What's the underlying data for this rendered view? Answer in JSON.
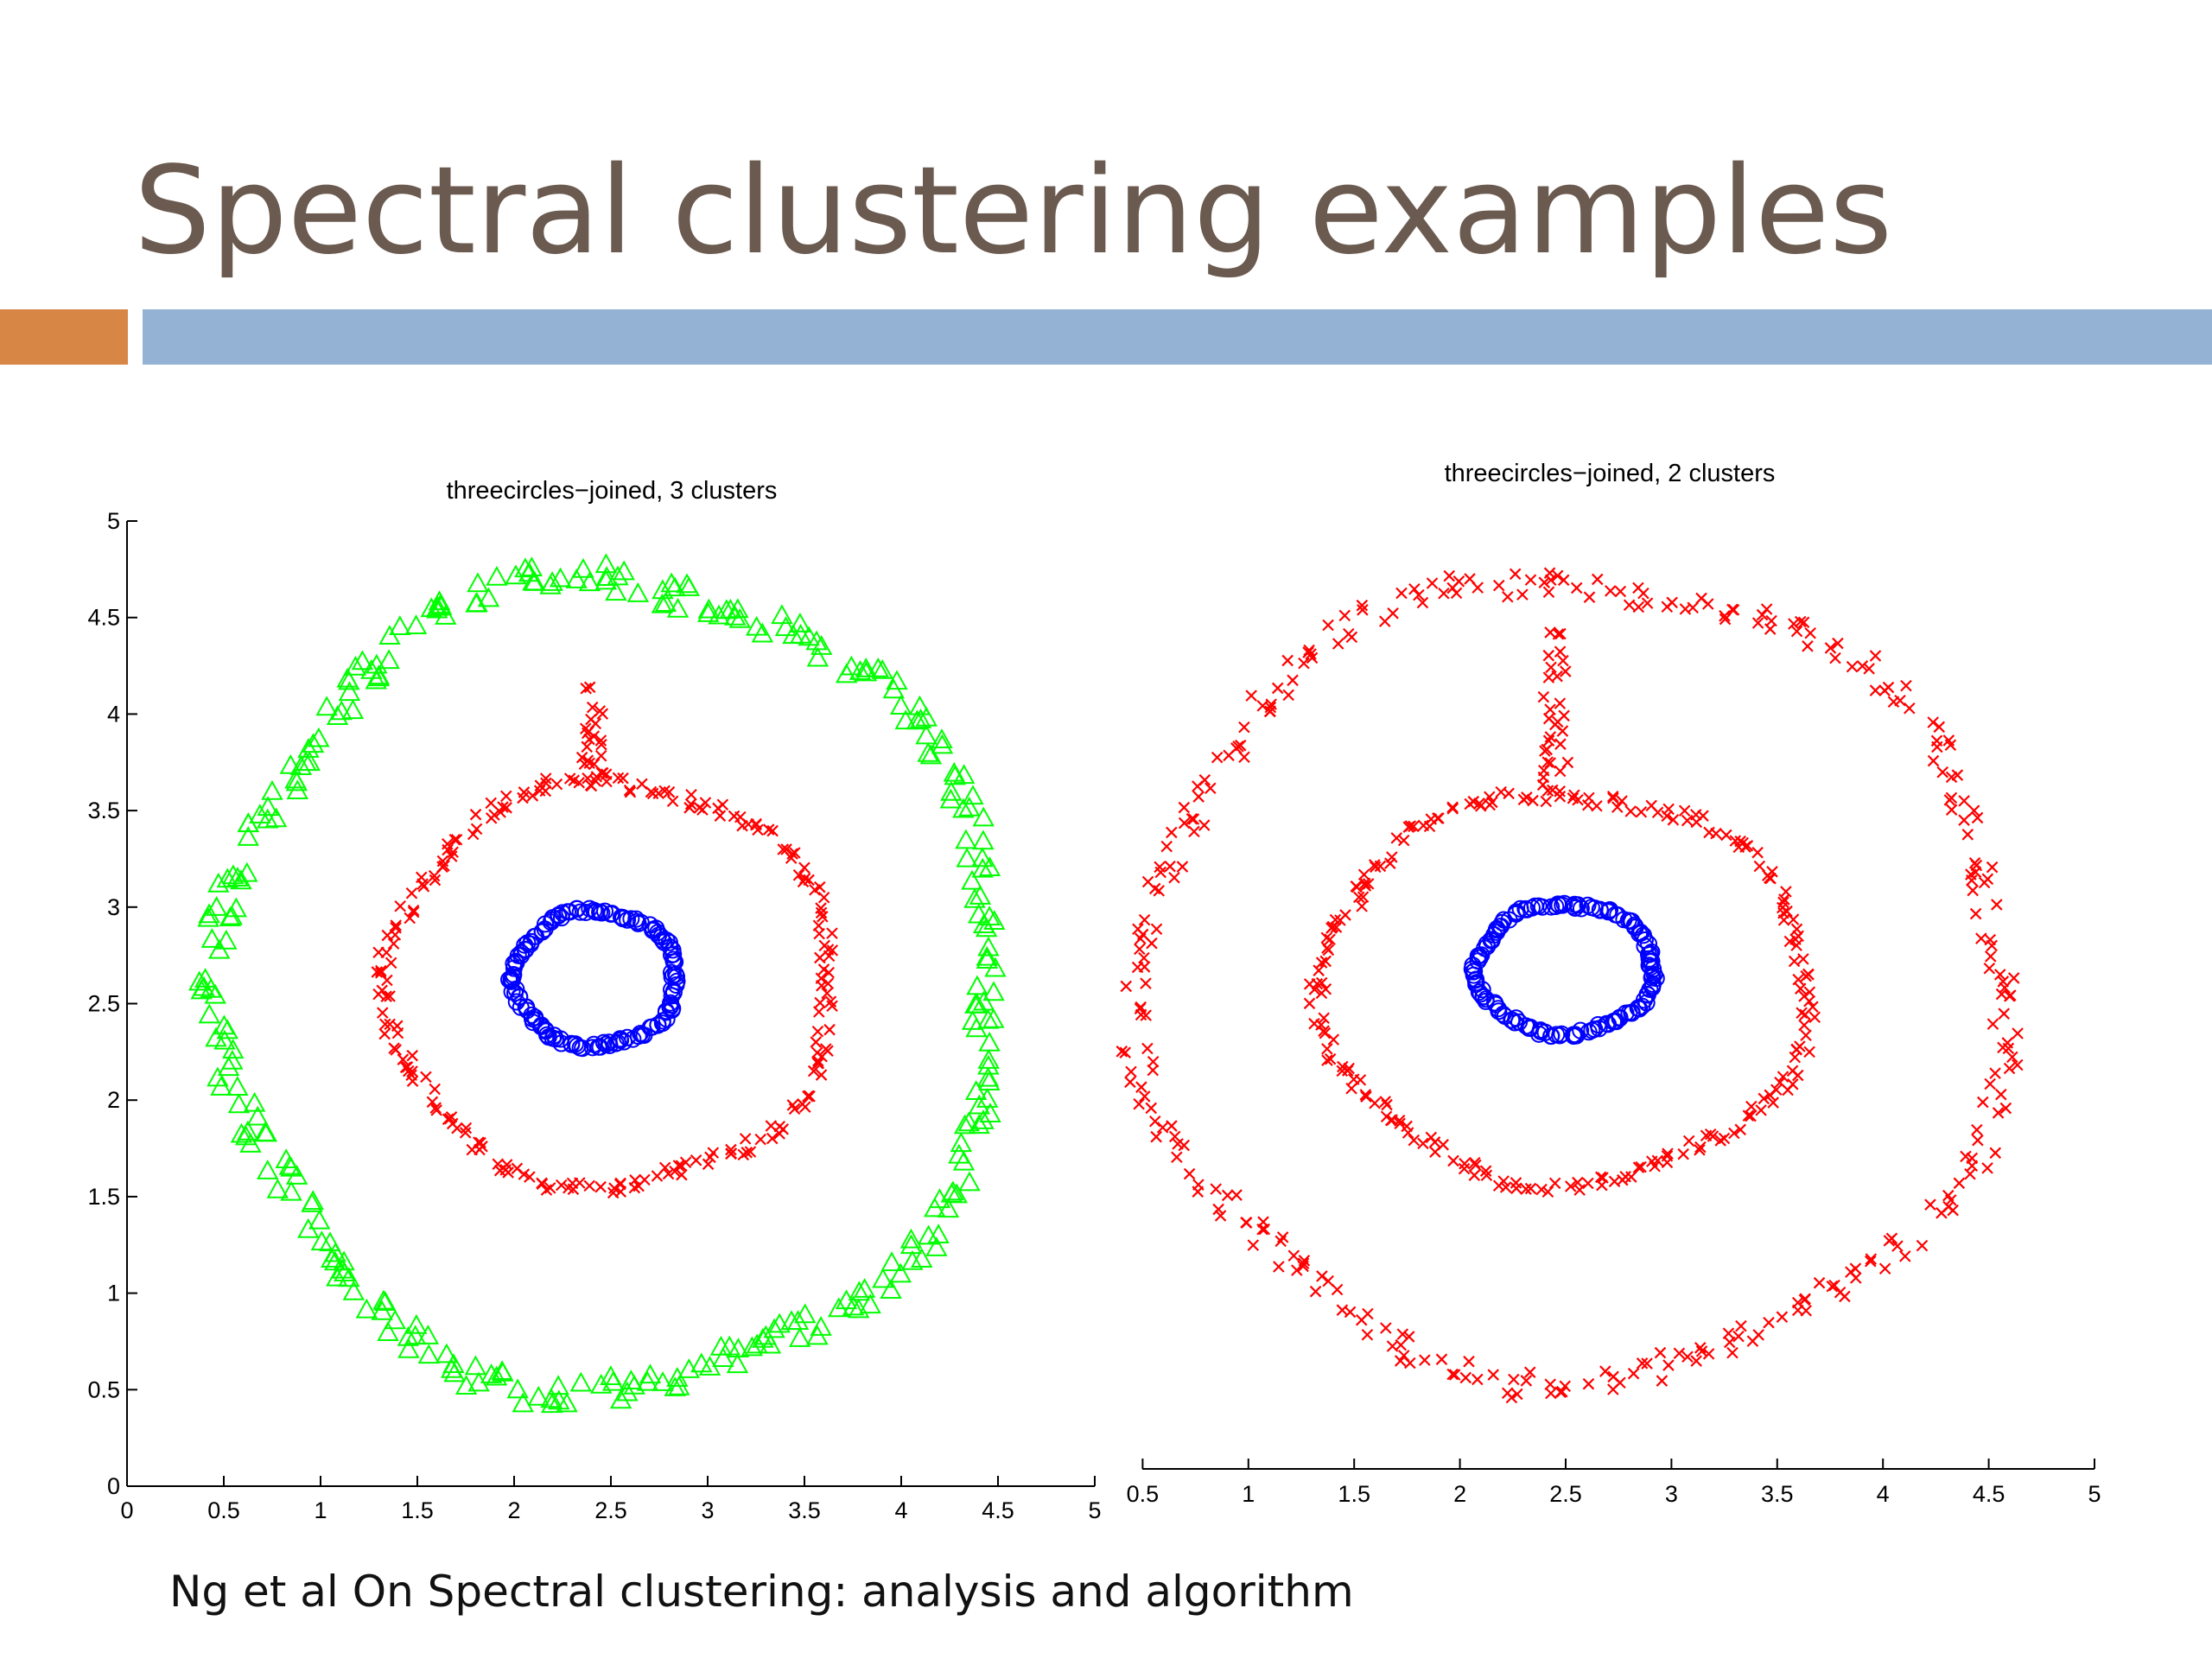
{
  "slide": {
    "title": "Spectral clustering examples",
    "caption": "Ng et al On Spectral clustering: analysis and algorithm",
    "colors": {
      "title": "#6b5a4f",
      "accent_orange": "#d88646",
      "accent_blue": "#94b3d4"
    }
  },
  "chart_data": [
    {
      "type": "scatter",
      "title": "threecircles−joined, 3 clusters",
      "xlabel": "",
      "ylabel": "",
      "xlim": [
        0,
        5
      ],
      "ylim": [
        0,
        5
      ],
      "xticks": [
        "0",
        "0.5",
        "1",
        "1.5",
        "2",
        "2.5",
        "3",
        "3.5",
        "4",
        "4.5",
        "5"
      ],
      "yticks": [
        "0",
        "0.5",
        "1",
        "1.5",
        "2",
        "2.5",
        "3",
        "3.5",
        "4",
        "4.5",
        "5"
      ],
      "grid": false,
      "series": [
        {
          "shape": "ring",
          "marker": "triangle",
          "color": "#00ff00",
          "center": [
            2.5,
            2.6
          ],
          "rx": 2.0,
          "ry": 2.1,
          "points": 320
        },
        {
          "shape": "ring",
          "marker": "x",
          "color": "#ff0000",
          "center": [
            2.5,
            2.6
          ],
          "rx": 1.15,
          "ry": 1.05,
          "points": 230
        },
        {
          "shape": "bridge",
          "marker": "x",
          "color": "#ff0000",
          "x": 2.4,
          "y_range": [
            3.65,
            4.15
          ],
          "points": 25
        },
        {
          "shape": "ring",
          "marker": "circle",
          "color": "#0000ff",
          "center": [
            2.42,
            2.63
          ],
          "rx": 0.42,
          "ry": 0.35,
          "points": 150
        }
      ]
    },
    {
      "type": "scatter",
      "title": "threecircles−joined, 2 clusters",
      "xlabel": "",
      "ylabel": "",
      "xlim": [
        0,
        5
      ],
      "ylim": [
        0,
        5
      ],
      "xticks": [
        "0.5",
        "1",
        "1.5",
        "2",
        "2.5",
        "3",
        "3.5",
        "4",
        "4.5",
        "5"
      ],
      "grid": false,
      "series": [
        {
          "shape": "ring",
          "marker": "x",
          "color": "#ff0000",
          "center": [
            2.55,
            2.65
          ],
          "rx": 2.05,
          "ry": 2.15,
          "points": 330
        },
        {
          "shape": "ring",
          "marker": "x",
          "color": "#ff0000",
          "center": [
            2.5,
            2.6
          ],
          "rx": 1.15,
          "ry": 1.05,
          "points": 230
        },
        {
          "shape": "bridge",
          "marker": "x",
          "color": "#ff0000",
          "x": 2.45,
          "y_range": [
            3.65,
            4.6
          ],
          "points": 30
        },
        {
          "shape": "ring",
          "marker": "circle",
          "color": "#0000ff",
          "center": [
            2.5,
            2.7
          ],
          "rx": 0.42,
          "ry": 0.35,
          "points": 150
        }
      ]
    }
  ]
}
